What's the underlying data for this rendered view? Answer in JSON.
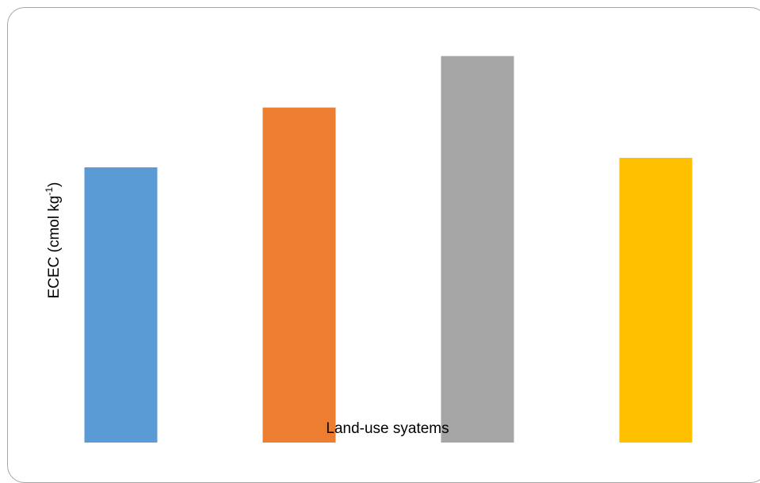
{
  "chart_data": {
    "type": "bar",
    "categories": [
      "",
      "",
      "",
      ""
    ],
    "values": [
      23.0,
      28.0,
      32.3,
      23.8
    ],
    "colors": [
      "#5b9bd5",
      "#ed7d31",
      "#a5a5a5",
      "#ffc000"
    ],
    "title": "",
    "xlabel": "Land-use syatems",
    "ylabel": "ECEC (cmol kg",
    "ylabel_superscript": "-1",
    "ylabel_suffix": ")",
    "ylim": [
      0,
      35
    ],
    "grid": false,
    "legend": "none"
  }
}
